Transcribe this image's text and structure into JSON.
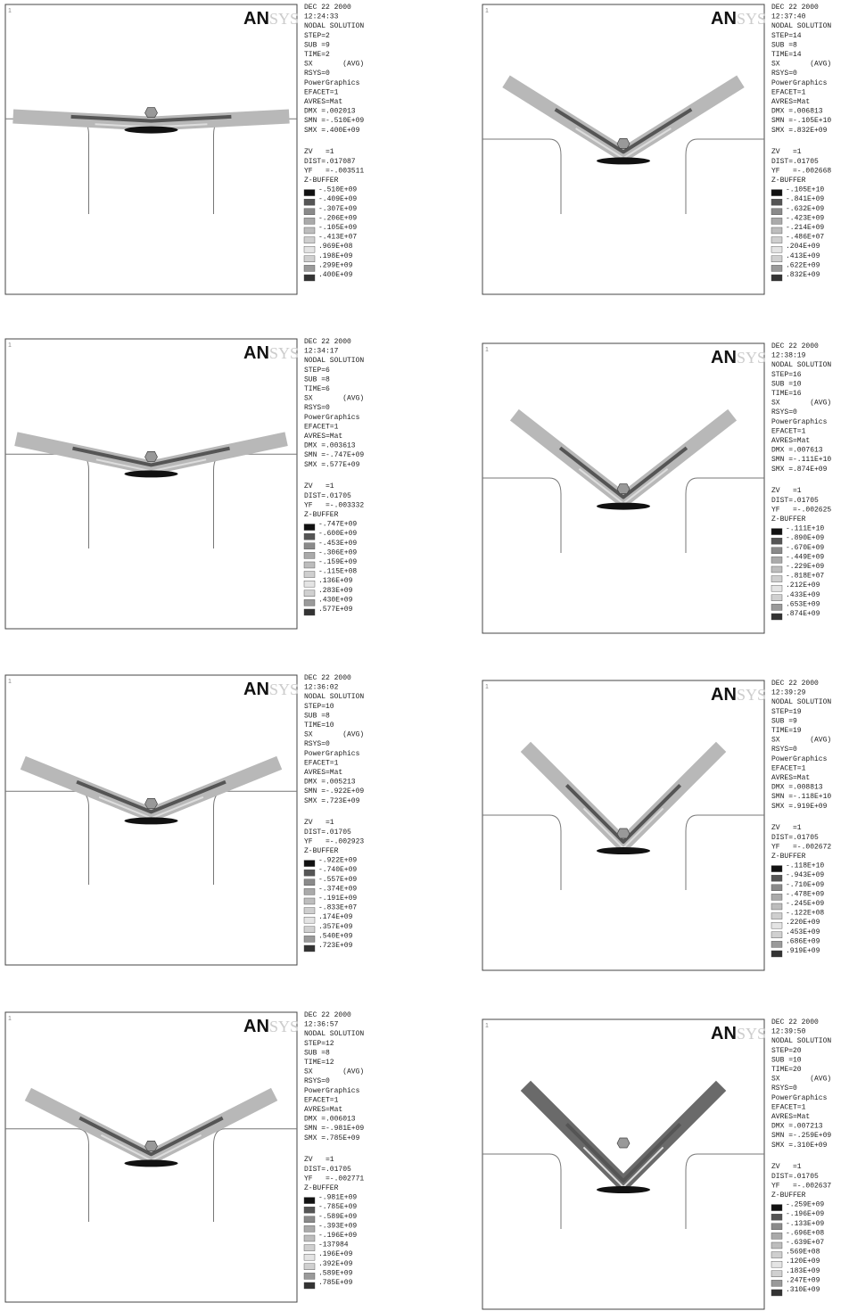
{
  "panels": [
    {
      "corner": "1",
      "logo_a": "AN",
      "logo_b": "SYS",
      "info": [
        "DEC 22 2000",
        "12:24:33",
        "NODAL SOLUTION",
        "STEP=2",
        "SUB =9",
        "TIME=2",
        "SX       (AVG)",
        "RSYS=0",
        "PowerGraphics",
        "EFACET=1",
        "AVRES=Mat",
        "DMX =.002013",
        "SMN =-.510E+09",
        "SMX =.400E+09"
      ],
      "view": [
        "ZV   =1",
        "DIST=.017087",
        "YF   =-.003511",
        "Z-BUFFER"
      ],
      "legend": [
        "-.510E+09",
        "-.409E+09",
        "-.307E+09",
        "-.206E+09",
        "-.105E+09",
        "-.413E+07",
        ".969E+08",
        ".198E+09",
        ".299E+09",
        ".400E+09"
      ]
    },
    {
      "corner": "1",
      "logo_a": "AN",
      "logo_b": "SYS",
      "info": [
        "DEC 22 2000",
        "12:37:40",
        "NODAL SOLUTION",
        "STEP=14",
        "SUB =8",
        "TIME=14",
        "SX       (AVG)",
        "RSYS=0",
        "PowerGraphics",
        "EFACET=1",
        "AVRES=Mat",
        "DMX =.006813",
        "SMN =-.105E+10",
        "SMX =.832E+09"
      ],
      "view": [
        "ZV   =1",
        "DIST=.01705",
        "YF   =-.002668",
        "Z-BUFFER"
      ],
      "legend": [
        "-.105E+10",
        "-.841E+09",
        "-.632E+09",
        "-.423E+09",
        "-.214E+09",
        "-.486E+07",
        ".204E+09",
        ".413E+09",
        ".622E+09",
        ".832E+09"
      ]
    },
    {
      "corner": "1",
      "logo_a": "AN",
      "logo_b": "SYS",
      "info": [
        "DEC 22 2000",
        "12:34:17",
        "NODAL SOLUTION",
        "STEP=6",
        "SUB =8",
        "TIME=6",
        "SX       (AVG)",
        "RSYS=0",
        "PowerGraphics",
        "EFACET=1",
        "AVRES=Mat",
        "DMX =.003613",
        "SMN =-.747E+09",
        "SMX =.577E+09"
      ],
      "view": [
        "ZV   =1",
        "DIST=.01705",
        "YF   =-.003332",
        "Z-BUFFER"
      ],
      "legend": [
        "-.747E+09",
        "-.600E+09",
        "-.453E+09",
        "-.306E+09",
        "-.159E+09",
        "-.115E+08",
        ".136E+09",
        ".283E+09",
        ".430E+09",
        ".577E+09"
      ]
    },
    {
      "corner": "1",
      "logo_a": "AN",
      "logo_b": "SYS",
      "info": [
        "DEC 22 2000",
        "12:38:19",
        "NODAL SOLUTION",
        "STEP=16",
        "SUB =10",
        "TIME=16",
        "SX       (AVG)",
        "RSYS=0",
        "PowerGraphics",
        "EFACET=1",
        "AVRES=Mat",
        "DMX =.007613",
        "SMN =-.111E+10",
        "SMX =.874E+09"
      ],
      "view": [
        "ZV   =1",
        "DIST=.01705",
        "YF   =-.002625",
        "Z-BUFFER"
      ],
      "legend": [
        "-.111E+10",
        "-.890E+09",
        "-.670E+09",
        "-.449E+09",
        "-.229E+09",
        "-.818E+07",
        ".212E+09",
        ".433E+09",
        ".653E+09",
        ".874E+09"
      ]
    },
    {
      "corner": "1",
      "logo_a": "AN",
      "logo_b": "SYS",
      "info": [
        "DEC 22 2000",
        "12:36:02",
        "NODAL SOLUTION",
        "STEP=10",
        "SUB =8",
        "TIME=10",
        "SX       (AVG)",
        "RSYS=0",
        "PowerGraphics",
        "EFACET=1",
        "AVRES=Mat",
        "DMX =.005213",
        "SMN =-.922E+09",
        "SMX =.723E+09"
      ],
      "view": [
        "ZV   =1",
        "DIST=.01705",
        "YF   =-.002923",
        "Z-BUFFER"
      ],
      "legend": [
        "-.922E+09",
        "-.740E+09",
        "-.557E+09",
        "-.374E+09",
        "-.191E+09",
        "-.833E+07",
        ".174E+09",
        ".357E+09",
        ".540E+09",
        ".723E+09"
      ]
    },
    {
      "corner": "1",
      "logo_a": "AN",
      "logo_b": "SYS",
      "info": [
        "DEC 22 2000",
        "12:39:29",
        "NODAL SOLUTION",
        "STEP=19",
        "SUB =9",
        "TIME=19",
        "SX       (AVG)",
        "RSYS=0",
        "PowerGraphics",
        "EFACET=1",
        "AVRES=Mat",
        "DMX =.008813",
        "SMN =-.118E+10",
        "SMX =.919E+09"
      ],
      "view": [
        "ZV   =1",
        "DIST=.01705",
        "YF   =-.002672",
        "Z-BUFFER"
      ],
      "legend": [
        "-.118E+10",
        "-.943E+09",
        "-.710E+09",
        "-.478E+09",
        "-.245E+09",
        "-.122E+08",
        ".220E+09",
        ".453E+09",
        ".686E+09",
        ".919E+09"
      ]
    },
    {
      "corner": "1",
      "logo_a": "AN",
      "logo_b": "SYS",
      "info": [
        "DEC 22 2000",
        "12:36:57",
        "NODAL SOLUTION",
        "STEP=12",
        "SUB =8",
        "TIME=12",
        "SX       (AVG)",
        "RSYS=0",
        "PowerGraphics",
        "EFACET=1",
        "AVRES=Mat",
        "DMX =.006013",
        "SMN =-.981E+09",
        "SMX =.785E+09"
      ],
      "view": [
        "ZV   =1",
        "DIST=.01705",
        "YF   =-.002771",
        "Z-BUFFER"
      ],
      "legend": [
        "-.981E+09",
        "-.785E+09",
        "-.589E+09",
        "-.393E+09",
        "-.196E+09",
        "-137984",
        ".196E+09",
        ".392E+09",
        ".589E+09",
        ".785E+09"
      ]
    },
    {
      "corner": "1",
      "logo_a": "AN",
      "logo_b": "SYS",
      "info": [
        "DEC 22 2000",
        "12:39:50",
        "NODAL SOLUTION",
        "STEP=20",
        "SUB =10",
        "TIME=20",
        "SX       (AVG)",
        "RSYS=0",
        "PowerGraphics",
        "EFACET=1",
        "AVRES=Mat",
        "DMX =.007213",
        "SMN =-.259E+09",
        "SMX =.310E+09"
      ],
      "view": [
        "ZV   =1",
        "DIST=.01705",
        "YF   =-.002637",
        "Z-BUFFER"
      ],
      "legend": [
        "-.259E+09",
        "-.196E+09",
        "-.133E+09",
        "-.696E+08",
        "-.639E+07",
        ".569E+08",
        ".120E+09",
        ".183E+09",
        ".247E+09",
        ".310E+09"
      ]
    }
  ]
}
